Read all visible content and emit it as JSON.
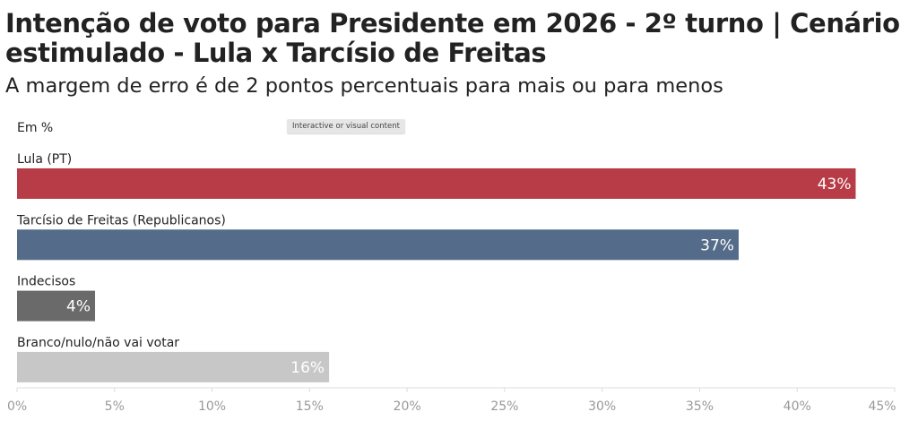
{
  "header": {
    "title": "Intenção de voto para Presidente em 2026 - 2º turno | Cenário estimulado - Lula x Tarcísio de Freitas",
    "subtitle": "A margem de erro é de 2 pontos percentuais para mais ou para menos",
    "unit_label": "Em %",
    "badge": "Interactive or visual content"
  },
  "chart_data": {
    "type": "bar",
    "orientation": "horizontal",
    "categories": [
      "Lula (PT)",
      "Tarcísio de Freitas (Republicanos)",
      "Indecisos",
      "Branco/nulo/não vai votar"
    ],
    "values": [
      43,
      37,
      4,
      16
    ],
    "value_labels": [
      "43%",
      "37%",
      "4%",
      "16%"
    ],
    "colors": [
      "#b73c47",
      "#546c89",
      "#6a6a6a",
      "#c7c7c7"
    ],
    "xlim": [
      0,
      45
    ],
    "xticks": [
      0,
      5,
      10,
      15,
      20,
      25,
      30,
      35,
      40,
      45
    ],
    "xtick_labels": [
      "0%",
      "5%",
      "10%",
      "15%",
      "20%",
      "25%",
      "30%",
      "35%",
      "40%",
      "45%"
    ],
    "grid": false,
    "legend": "none"
  }
}
